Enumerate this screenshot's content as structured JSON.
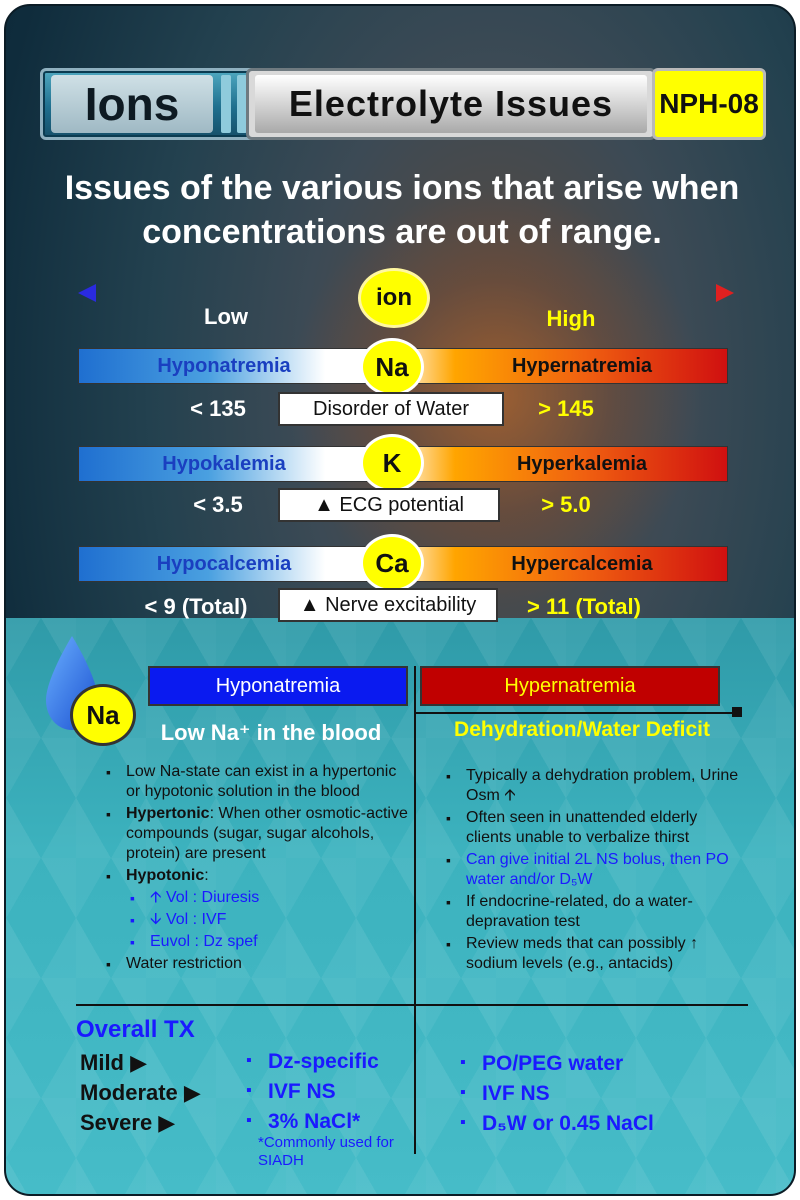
{
  "header": {
    "ions_label": "Ions",
    "title": "Electrolyte Issues",
    "code": "NPH-08"
  },
  "subtitle": "Issues of the various ions that arise when concentrations are out of range.",
  "scale": {
    "center": "ion",
    "low": "Low",
    "high": "High"
  },
  "ions": [
    {
      "symbol": "Na",
      "low_name": "Hyponatremia",
      "high_name": "Hypernatremia",
      "low_range": "< 135",
      "high_range": "> 145",
      "note": "Disorder of Water"
    },
    {
      "symbol": "K",
      "low_name": "Hypokalemia",
      "high_name": "Hyperkalemia",
      "low_range": "< 3.5",
      "high_range": "> 5.0",
      "note": "▲ ECG potential"
    },
    {
      "symbol": "Ca",
      "low_name": "Hypocalcemia",
      "high_name": "Hypercalcemia",
      "low_range": "< 9 (Total)",
      "high_range": "> 11 (Total)",
      "note": "▲ Nerve excitability"
    }
  ],
  "detail": {
    "symbol": "Na",
    "left_column": "Hyponatremia",
    "right_column": "Hypernatremia",
    "left_heading": "Low Na⁺ in the blood",
    "right_heading": "Dehydration/Water Deficit",
    "left_items": {
      "i1": "Low Na-state can exist in a hypertonic or hypotonic solution in the blood",
      "i2_bold": "Hypertonic",
      "i2_rest": ": When other osmotic-active compounds (sugar, sugar alcohols, protein) are present",
      "i3_bold": "Hypotonic",
      "i3_rest": ":",
      "s1": "Vol : Diuresis",
      "s2": "Vol : IVF",
      "s3": "Euvol : Dz spef",
      "i4": "Water restriction"
    },
    "right_items": {
      "r1": "Typically a dehydration problem, Urine Osm",
      "r2": "Often seen in unattended elderly clients unable to verbalize thirst",
      "r3": "Can give initial 2L NS bolus, then PO water and/or D₅W",
      "r4": "If endocrine-related, do a water-depravation test",
      "r5": "Review meds that can possibly ↑ sodium levels (e.g., antacids)"
    }
  },
  "treatment": {
    "heading": "Overall TX",
    "levels": [
      "Mild ▶",
      "Moderate ▶",
      "Severe ▶"
    ],
    "hypo": [
      "Dz-specific",
      "IVF NS",
      "3% NaCl*"
    ],
    "hyper": [
      "PO/PEG water",
      "IVF NS",
      "D₅W or 0.45 NaCl"
    ],
    "note": "*Commonly used for SIADH"
  },
  "colors": {
    "accent_yellow": "#ffff00",
    "hypo_blue": "#0a1af0",
    "hyper_red": "#c00000",
    "text_blue": "#1a1aff"
  }
}
